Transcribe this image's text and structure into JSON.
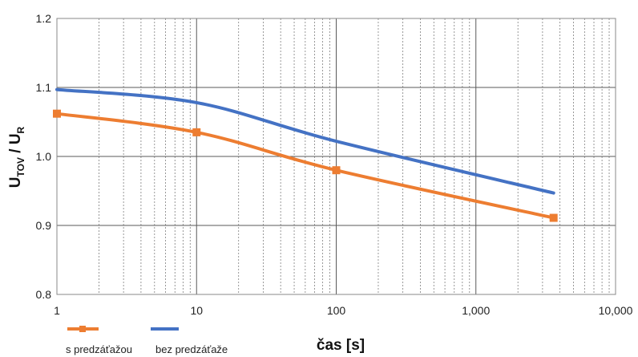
{
  "chart_data": {
    "type": "line",
    "title": "",
    "xlabel": "čas [s]",
    "ylabel_main": "U",
    "ylabel_sub1": "TOV",
    "ylabel_sep": " / U",
    "ylabel_sub2": "R",
    "x_scale": "log",
    "xlim": [
      1,
      10000
    ],
    "ylim": [
      0.8,
      1.2
    ],
    "x_ticks": [
      1,
      10,
      100,
      1000,
      10000
    ],
    "x_tick_labels": [
      "1",
      "10",
      "100",
      "1,000",
      "10,000"
    ],
    "y_ticks": [
      0.8,
      0.9,
      1.0,
      1.1,
      1.2
    ],
    "y_tick_labels": [
      "0.8",
      "0.9",
      "1.0",
      "1.1",
      "1.2"
    ],
    "grid": true,
    "legend_position": "bottom-left",
    "series": [
      {
        "name": "s predzáťažou",
        "color": "#ed7d31",
        "marker": "square",
        "x": [
          1,
          10,
          100,
          3600
        ],
        "y": [
          1.062,
          1.035,
          0.98,
          0.911
        ]
      },
      {
        "name": "bez predzáťaže",
        "color": "#4472c4",
        "marker": "none",
        "x": [
          1,
          10,
          100,
          3600
        ],
        "y": [
          1.097,
          1.078,
          1.022,
          0.947
        ]
      }
    ]
  }
}
